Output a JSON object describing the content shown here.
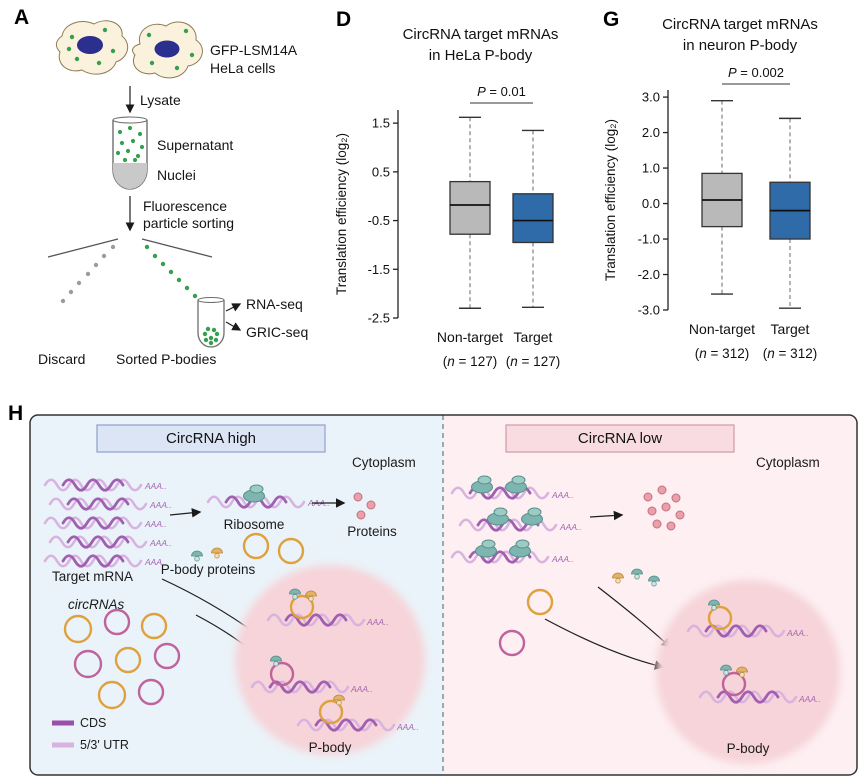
{
  "panelA": {
    "label": "A",
    "cells_line1": "GFP-LSM14A",
    "cells_line2": "HeLa cells",
    "lysate": "Lysate",
    "supernatant": "Supernatant",
    "nuclei": "Nuclei",
    "sorting_line1": "Fluorescence",
    "sorting_line2": "particle sorting",
    "rna_seq": "RNA-seq",
    "gric_seq": "GRIC-seq",
    "discard": "Discard",
    "sorted": "Sorted P-bodies"
  },
  "chart_data": [
    {
      "type": "boxplot",
      "panel": "D",
      "title_line1": "CircRNA target mRNAs",
      "title_line2": "in HeLa P-body",
      "ylabel": "Translation efficiency (log₂)",
      "p_symbol": "P",
      "p_text": "= 0.01",
      "ylim": [
        -2.5,
        1.77
      ],
      "yticks": [
        1.5,
        0.5,
        -0.5,
        -1.5,
        -2.5
      ],
      "groups": [
        {
          "label": "Non-target",
          "n": "127",
          "color": "#b9b9b9",
          "whisker_low": -2.3,
          "q1": -0.78,
          "median": -0.18,
          "q3": 0.3,
          "whisker_high": 1.62
        },
        {
          "label": "Target",
          "n": "127",
          "color": "#2e6ba8",
          "whisker_low": -2.28,
          "q1": -0.95,
          "median": -0.5,
          "q3": 0.05,
          "whisker_high": 1.35
        }
      ]
    },
    {
      "type": "boxplot",
      "panel": "G",
      "title_line1": "CircRNA target mRNAs",
      "title_line2": "in neuron P-body",
      "ylabel": "Translation efficiency (log₂)",
      "p_symbol": "P",
      "p_text": "= 0.002",
      "ylim": [
        -3.0,
        3.2
      ],
      "yticks": [
        3.0,
        2.0,
        1.0,
        0.0,
        -1.0,
        -2.0,
        -3.0
      ],
      "groups": [
        {
          "label": "Non-target",
          "n": "312",
          "color": "#b9b9b9",
          "whisker_low": -2.55,
          "q1": -0.65,
          "median": 0.1,
          "q3": 0.85,
          "whisker_high": 2.9
        },
        {
          "label": "Target",
          "n": "312",
          "color": "#2e6ba8",
          "whisker_low": -2.95,
          "q1": -1.0,
          "median": -0.2,
          "q3": 0.6,
          "whisker_high": 2.4
        }
      ]
    }
  ],
  "panelH": {
    "label": "H",
    "left_header": "CircRNA high",
    "right_header": "CircRNA low",
    "cytoplasm": "Cytoplasm",
    "target_mrna": "Target mRNA",
    "ribosome": "Ribosome",
    "proteins": "Proteins",
    "pbody_proteins": "P-body proteins",
    "circrnas": "circRNAs",
    "pbody": "P-body",
    "legend_cds": "CDS",
    "legend_utr": "5/3' UTR",
    "aaa": "AAA.."
  },
  "colors": {
    "nontarget_box": "#b9b9b9",
    "target_box": "#2e6ba8",
    "left_bg": "#eaf3f9",
    "right_bg": "#fdeff2",
    "circrna_high_bg": "#dce5f5",
    "circrna_low_bg": "#f8dce2",
    "pbody_fill": "#f6d4d9"
  }
}
